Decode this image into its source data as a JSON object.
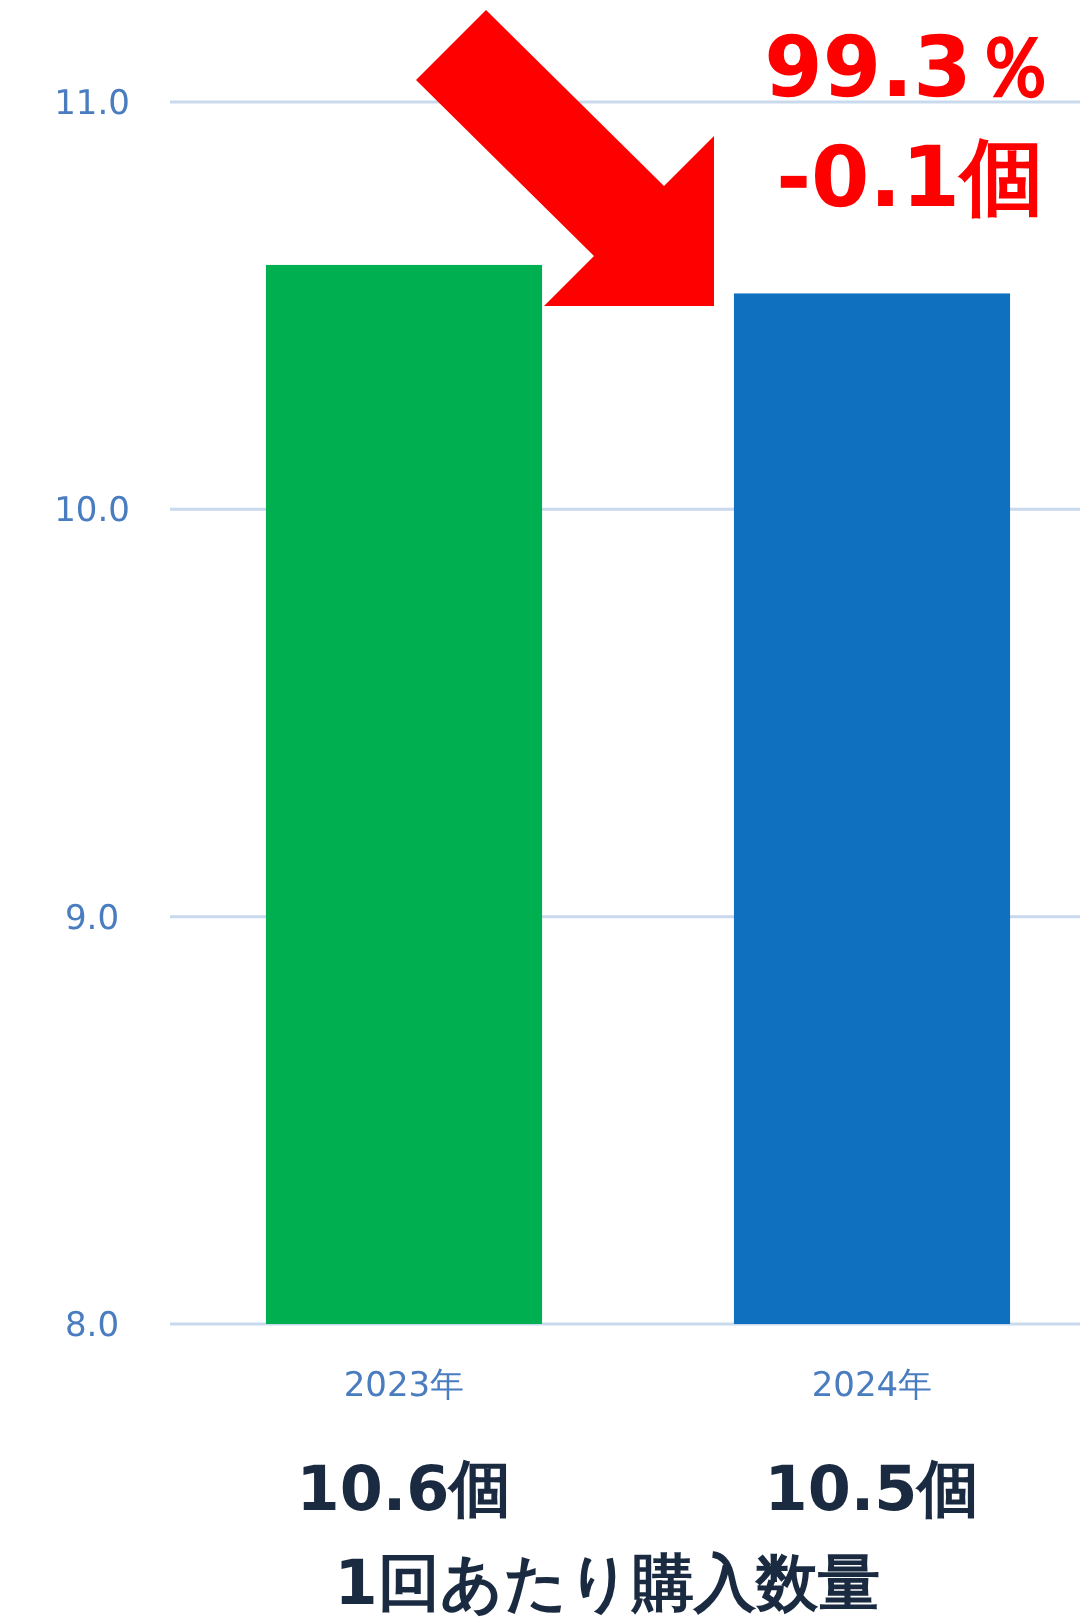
{
  "chart_data": {
    "type": "bar",
    "xlabel": "1回あたり購入数量",
    "categories": [
      "2023年",
      "2024年"
    ],
    "values": [
      10.6,
      10.53
    ],
    "colors": [
      "#00b050",
      "#0f70c0"
    ],
    "value_labels": [
      "10.6個",
      "10.5個"
    ],
    "ylim": [
      8,
      11
    ],
    "yticks": [
      {
        "value": 8,
        "label": "8.0"
      },
      {
        "value": 9,
        "label": "9.0"
      },
      {
        "value": 10,
        "label": "10.0"
      },
      {
        "value": 11,
        "label": "11.0"
      }
    ],
    "grid": "y",
    "annotations": [
      "99.3％",
      "-0.1個"
    ]
  }
}
